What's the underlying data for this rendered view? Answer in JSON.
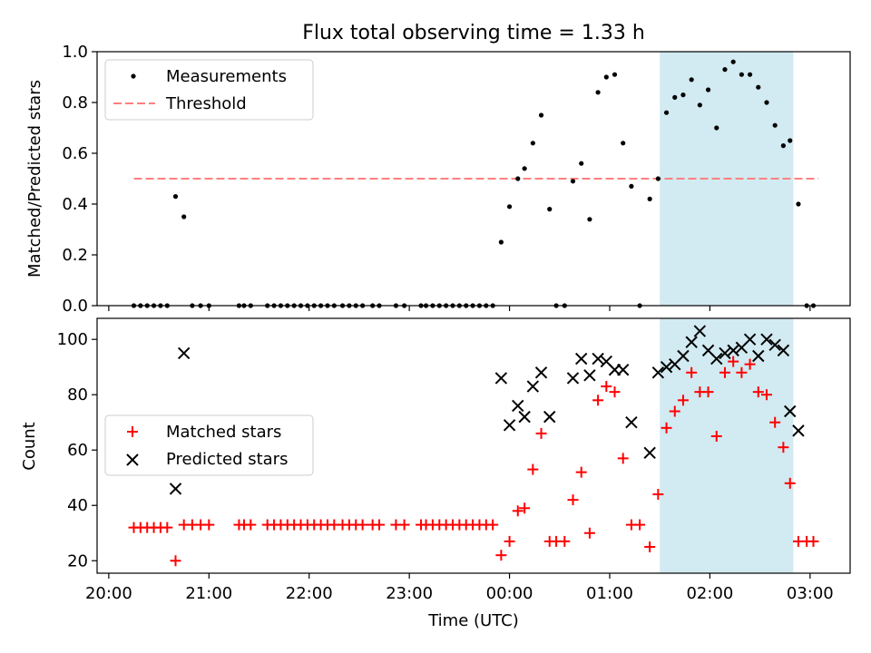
{
  "figure": {
    "title": "Flux total observing time = 1.33 h"
  },
  "chart_data": [
    {
      "type": "scatter",
      "ylabel": "Matched/Predicted stars",
      "ylim": [
        0,
        1.0
      ],
      "yticks": [
        "0.0",
        "0.2",
        "0.4",
        "0.6",
        "0.8",
        "1.0"
      ],
      "shaded_interval": [
        "01:30",
        "02:50"
      ],
      "shade_color": "#add8e6",
      "legend": {
        "placement": "upper left",
        "items": [
          "Measurements",
          "Threshold"
        ]
      },
      "series": [
        {
          "name": "Measurements",
          "color": "#000000",
          "marker": "dot",
          "points": [
            [
              "20:15",
              0
            ],
            [
              "20:19",
              0
            ],
            [
              "20:23",
              0
            ],
            [
              "20:27",
              0
            ],
            [
              "20:31",
              0
            ],
            [
              "20:35",
              0
            ],
            [
              "20:40",
              0.43
            ],
            [
              "20:45",
              0.35
            ],
            [
              "20:50",
              0
            ],
            [
              "20:55",
              0
            ],
            [
              "21:00",
              0
            ],
            [
              "21:18",
              0
            ],
            [
              "21:21",
              0
            ],
            [
              "21:25",
              0
            ],
            [
              "21:35",
              0
            ],
            [
              "21:39",
              0
            ],
            [
              "21:43",
              0
            ],
            [
              "21:47",
              0
            ],
            [
              "21:51",
              0
            ],
            [
              "21:55",
              0
            ],
            [
              "21:59",
              0
            ],
            [
              "22:03",
              0
            ],
            [
              "22:07",
              0
            ],
            [
              "22:11",
              0
            ],
            [
              "22:15",
              0
            ],
            [
              "22:20",
              0
            ],
            [
              "22:24",
              0
            ],
            [
              "22:28",
              0
            ],
            [
              "22:32",
              0
            ],
            [
              "22:38",
              0
            ],
            [
              "22:42",
              0
            ],
            [
              "22:52",
              0
            ],
            [
              "22:57",
              0
            ],
            [
              "23:07",
              0
            ],
            [
              "23:10",
              0
            ],
            [
              "23:14",
              0
            ],
            [
              "23:18",
              0
            ],
            [
              "23:22",
              0
            ],
            [
              "23:26",
              0
            ],
            [
              "23:30",
              0
            ],
            [
              "23:34",
              0
            ],
            [
              "23:38",
              0
            ],
            [
              "23:42",
              0
            ],
            [
              "23:46",
              0
            ],
            [
              "23:50",
              0
            ],
            [
              "23:55",
              0.25
            ],
            [
              "00:00",
              0.39
            ],
            [
              "00:05",
              0.5
            ],
            [
              "00:09",
              0.54
            ],
            [
              "00:14",
              0.64
            ],
            [
              "00:19",
              0.75
            ],
            [
              "00:24",
              0.38
            ],
            [
              "00:28",
              0
            ],
            [
              "00:33",
              0
            ],
            [
              "00:38",
              0.49
            ],
            [
              "00:43",
              0.56
            ],
            [
              "00:48",
              0.34
            ],
            [
              "00:53",
              0.84
            ],
            [
              "00:58",
              0.9
            ],
            [
              "01:03",
              0.91
            ],
            [
              "01:08",
              0.64
            ],
            [
              "01:13",
              0.47
            ],
            [
              "01:18",
              0
            ],
            [
              "01:24",
              0.42
            ],
            [
              "01:29",
              0.5
            ],
            [
              "01:34",
              0.76
            ],
            [
              "01:39",
              0.82
            ],
            [
              "01:44",
              0.83
            ],
            [
              "01:49",
              0.89
            ],
            [
              "01:54",
              0.79
            ],
            [
              "01:59",
              0.85
            ],
            [
              "02:04",
              0.7
            ],
            [
              "02:09",
              0.93
            ],
            [
              "02:14",
              0.96
            ],
            [
              "02:19",
              0.91
            ],
            [
              "02:24",
              0.91
            ],
            [
              "02:29",
              0.86
            ],
            [
              "02:34",
              0.8
            ],
            [
              "02:39",
              0.71
            ],
            [
              "02:44",
              0.63
            ],
            [
              "02:48",
              0.65
            ],
            [
              "02:53",
              0.4
            ],
            [
              "02:58",
              0
            ],
            [
              "03:02",
              0
            ]
          ]
        },
        {
          "name": "Threshold",
          "color": "#ff8080",
          "style": "dashed",
          "points": [
            [
              "20:15",
              0.5
            ],
            [
              "03:05",
              0.5
            ]
          ]
        }
      ]
    },
    {
      "type": "scatter",
      "xlabel": "Time (UTC)",
      "ylabel": "Count",
      "ylim": [
        15.5,
        107.6
      ],
      "yticks": [
        "20",
        "40",
        "60",
        "80",
        "100"
      ],
      "xticks": [
        "20:00",
        "21:00",
        "22:00",
        "23:00",
        "00:00",
        "01:00",
        "02:00",
        "03:00"
      ],
      "xlim": [
        "19:53",
        "03:24"
      ],
      "shaded_interval": [
        "01:30",
        "02:50"
      ],
      "shade_color": "#add8e6",
      "legend": {
        "placement": "center left",
        "items": [
          "Matched stars",
          "Predicted stars"
        ]
      },
      "series": [
        {
          "name": "Matched stars",
          "color": "#ff0000",
          "marker": "plus",
          "points": [
            [
              "20:15",
              32
            ],
            [
              "20:19",
              32
            ],
            [
              "20:23",
              32
            ],
            [
              "20:27",
              32
            ],
            [
              "20:31",
              32
            ],
            [
              "20:35",
              32
            ],
            [
              "20:40",
              20
            ],
            [
              "20:45",
              33
            ],
            [
              "20:50",
              33
            ],
            [
              "20:55",
              33
            ],
            [
              "21:00",
              33
            ],
            [
              "21:18",
              33
            ],
            [
              "21:21",
              33
            ],
            [
              "21:25",
              33
            ],
            [
              "21:35",
              33
            ],
            [
              "21:39",
              33
            ],
            [
              "21:43",
              33
            ],
            [
              "21:47",
              33
            ],
            [
              "21:51",
              33
            ],
            [
              "21:55",
              33
            ],
            [
              "21:59",
              33
            ],
            [
              "22:03",
              33
            ],
            [
              "22:07",
              33
            ],
            [
              "22:11",
              33
            ],
            [
              "22:15",
              33
            ],
            [
              "22:20",
              33
            ],
            [
              "22:24",
              33
            ],
            [
              "22:28",
              33
            ],
            [
              "22:32",
              33
            ],
            [
              "22:38",
              33
            ],
            [
              "22:42",
              33
            ],
            [
              "22:52",
              33
            ],
            [
              "22:57",
              33
            ],
            [
              "23:07",
              33
            ],
            [
              "23:10",
              33
            ],
            [
              "23:14",
              33
            ],
            [
              "23:18",
              33
            ],
            [
              "23:22",
              33
            ],
            [
              "23:26",
              33
            ],
            [
              "23:30",
              33
            ],
            [
              "23:34",
              33
            ],
            [
              "23:38",
              33
            ],
            [
              "23:42",
              33
            ],
            [
              "23:46",
              33
            ],
            [
              "23:50",
              33
            ],
            [
              "23:55",
              22
            ],
            [
              "00:00",
              27
            ],
            [
              "00:05",
              38
            ],
            [
              "00:09",
              39
            ],
            [
              "00:14",
              53
            ],
            [
              "00:19",
              66
            ],
            [
              "00:24",
              27
            ],
            [
              "00:28",
              27
            ],
            [
              "00:33",
              27
            ],
            [
              "00:38",
              42
            ],
            [
              "00:43",
              52
            ],
            [
              "00:48",
              30
            ],
            [
              "00:53",
              78
            ],
            [
              "00:58",
              83
            ],
            [
              "01:03",
              81
            ],
            [
              "01:08",
              57
            ],
            [
              "01:13",
              33
            ],
            [
              "01:18",
              33
            ],
            [
              "01:24",
              25
            ],
            [
              "01:29",
              44
            ],
            [
              "01:34",
              68
            ],
            [
              "01:39",
              74
            ],
            [
              "01:44",
              78
            ],
            [
              "01:49",
              88
            ],
            [
              "01:54",
              81
            ],
            [
              "01:59",
              81
            ],
            [
              "02:04",
              65
            ],
            [
              "02:09",
              88
            ],
            [
              "02:14",
              92
            ],
            [
              "02:19",
              88
            ],
            [
              "02:24",
              91
            ],
            [
              "02:29",
              81
            ],
            [
              "02:34",
              80
            ],
            [
              "02:39",
              70
            ],
            [
              "02:44",
              61
            ],
            [
              "02:48",
              48
            ],
            [
              "02:53",
              27
            ],
            [
              "02:58",
              27
            ],
            [
              "03:02",
              27
            ]
          ]
        },
        {
          "name": "Predicted stars",
          "color": "#000000",
          "marker": "x",
          "points": [
            [
              "20:40",
              46
            ],
            [
              "20:45",
              95
            ],
            [
              "23:55",
              86
            ],
            [
              "00:00",
              69
            ],
            [
              "00:05",
              76
            ],
            [
              "00:09",
              72
            ],
            [
              "00:14",
              83
            ],
            [
              "00:19",
              88
            ],
            [
              "00:24",
              72
            ],
            [
              "00:38",
              86
            ],
            [
              "00:43",
              93
            ],
            [
              "00:48",
              87
            ],
            [
              "00:53",
              93
            ],
            [
              "00:58",
              92
            ],
            [
              "01:03",
              89
            ],
            [
              "01:08",
              89
            ],
            [
              "01:13",
              70
            ],
            [
              "01:24",
              59
            ],
            [
              "01:29",
              88
            ],
            [
              "01:34",
              90
            ],
            [
              "01:39",
              91
            ],
            [
              "01:44",
              94
            ],
            [
              "01:49",
              99
            ],
            [
              "01:54",
              103
            ],
            [
              "01:59",
              96
            ],
            [
              "02:04",
              93
            ],
            [
              "02:09",
              95
            ],
            [
              "02:14",
              96
            ],
            [
              "02:19",
              97
            ],
            [
              "02:24",
              100
            ],
            [
              "02:29",
              94
            ],
            [
              "02:34",
              100
            ],
            [
              "02:39",
              98
            ],
            [
              "02:44",
              96
            ],
            [
              "02:48",
              74
            ],
            [
              "02:53",
              67
            ]
          ]
        }
      ]
    }
  ]
}
